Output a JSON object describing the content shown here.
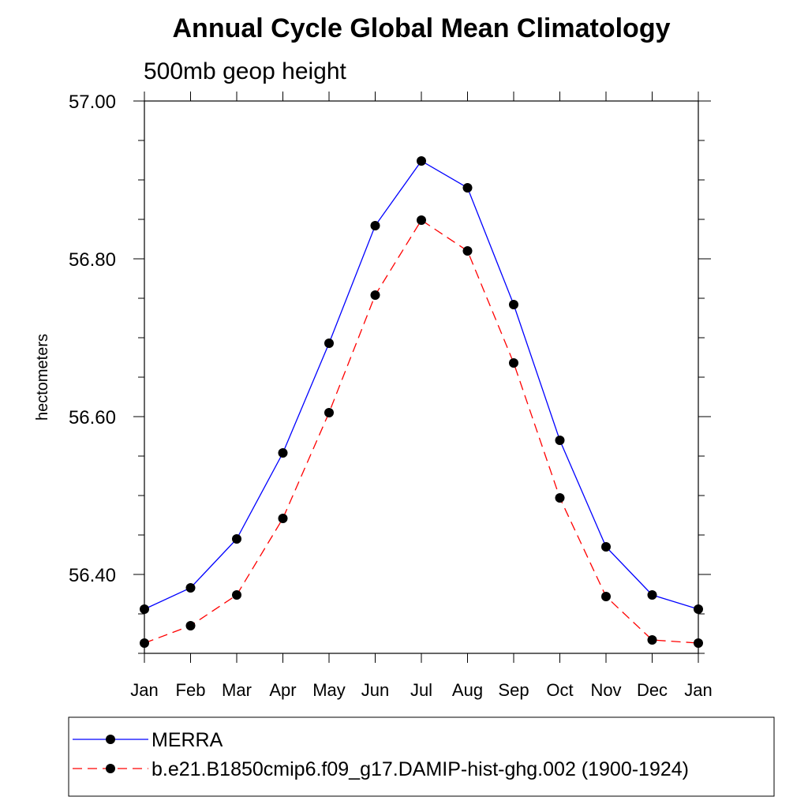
{
  "chart_data": {
    "type": "line",
    "title": "Annual Cycle Global Mean Climatology",
    "subtitle": "500mb geop height",
    "xlabel": "",
    "ylabel": "hectometers",
    "categories": [
      "Jan",
      "Feb",
      "Mar",
      "Apr",
      "May",
      "Jun",
      "Jul",
      "Aug",
      "Sep",
      "Oct",
      "Nov",
      "Dec",
      "Jan"
    ],
    "ylim": [
      56.3,
      57.0
    ],
    "yticks": [
      56.4,
      56.6,
      56.8,
      57.0
    ],
    "ytick_labels": [
      "56.40",
      "56.60",
      "56.80",
      "57.00"
    ],
    "grid": false,
    "legend_position": "bottom",
    "series": [
      {
        "name": "MERRA",
        "color": "#0000ff",
        "dash": "solid",
        "values": [
          56.356,
          56.383,
          56.445,
          56.554,
          56.693,
          56.842,
          56.924,
          56.89,
          56.742,
          56.57,
          56.435,
          56.374,
          56.356
        ]
      },
      {
        "name": "b.e21.B1850cmip6.f09_g17.DAMIP-hist-ghg.002 (1900-1924)",
        "color": "#ff0000",
        "dash": "dashed",
        "values": [
          56.313,
          56.335,
          56.374,
          56.471,
          56.605,
          56.754,
          56.849,
          56.81,
          56.668,
          56.497,
          56.372,
          56.317,
          56.313
        ]
      }
    ]
  }
}
